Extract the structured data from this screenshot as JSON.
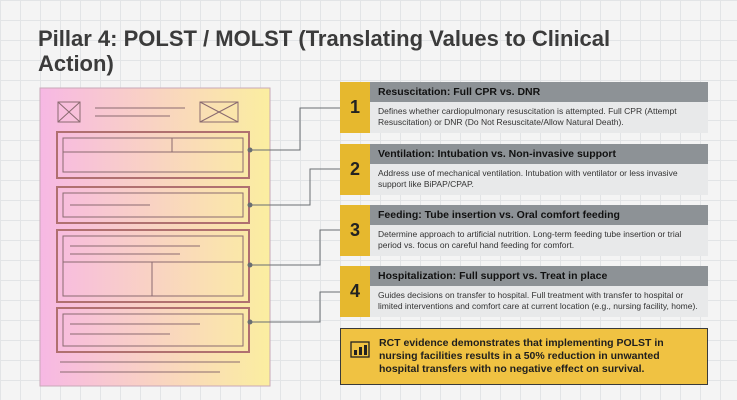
{
  "title": "Pillar 4: POLST / MOLST (Translating Values to Clinical Action)",
  "items": [
    {
      "number": "1",
      "heading": "Resuscitation: Full CPR vs. DNR",
      "description": "Defines whether cardiopulmonary resuscitation is attempted. Full CPR (Attempt Resuscitation) or DNR (Do Not Resuscitate/Allow Natural Death)."
    },
    {
      "number": "2",
      "heading": "Ventilation: Intubation vs. Non-invasive support",
      "description": "Address use of mechanical ventilation. Intubation with ventilator or less invasive support like BiPAP/CPAP."
    },
    {
      "number": "3",
      "heading": "Feeding: Tube insertion vs. Oral comfort feeding",
      "description": "Determine approach to artificial nutrition. Long-term feeding tube insertion or trial period vs. focus on careful hand feeding for comfort."
    },
    {
      "number": "4",
      "heading": "Hospitalization: Full support vs. Treat in place",
      "description": "Guides decisions on transfer to hospital. Full treatment with transfer to hospital or limited interventions and comfort care at current location (e.g., nursing facility, home)."
    }
  ],
  "callout": "RCT evidence demonstrates that implementing POLST in nursing facilities results in a 50% reduction in unwanted hospital transfers with no negative effect on survival."
}
